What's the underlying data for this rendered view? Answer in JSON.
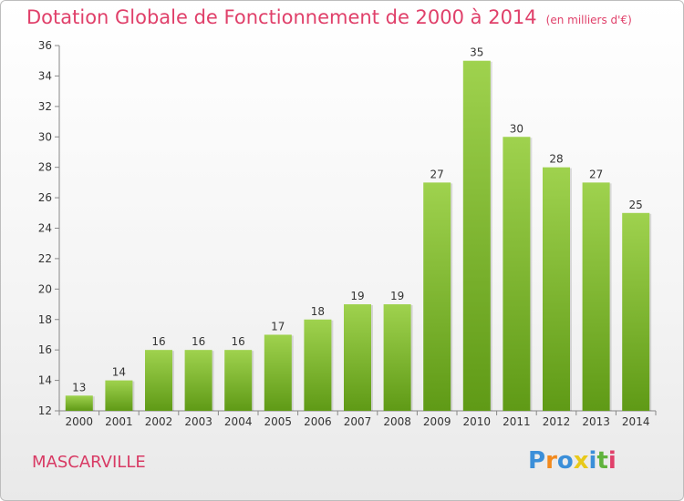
{
  "header": {
    "title": "Dotation Globale de Fonctionnement de 2000 à 2014",
    "subtitle": "(en milliers d'€)"
  },
  "footer": {
    "commune": "MASCARVILLE",
    "logo": {
      "text": "Proxiti",
      "letters": [
        {
          "ch": "P",
          "color": "#3b8fd9"
        },
        {
          "ch": "r",
          "color": "#f28a1e"
        },
        {
          "ch": "o",
          "color": "#3b8fd9"
        },
        {
          "ch": "x",
          "color": "#e8c91a"
        },
        {
          "ch": "i",
          "color": "#3b8fd9"
        },
        {
          "ch": "t",
          "color": "#5fb33c"
        },
        {
          "ch": "i",
          "color": "#e0406a"
        }
      ]
    }
  },
  "chart_data": {
    "type": "bar",
    "title": "Dotation Globale de Fonctionnement de 2000 à 2014",
    "subtitle": "(en milliers d'€)",
    "categories": [
      "2000",
      "2001",
      "2002",
      "2003",
      "2004",
      "2005",
      "2006",
      "2007",
      "2008",
      "2009",
      "2010",
      "2011",
      "2012",
      "2013",
      "2014"
    ],
    "values": [
      13,
      14,
      16,
      16,
      16,
      17,
      18,
      19,
      19,
      27,
      35,
      30,
      28,
      27,
      25
    ],
    "ylim": [
      12,
      36
    ],
    "yticks": [
      12,
      14,
      16,
      18,
      20,
      22,
      24,
      26,
      28,
      30,
      32,
      34,
      36
    ],
    "grid": false,
    "colors": {
      "bar_top": "#9fd24e",
      "bar_bottom": "#5f9a16",
      "axis": "#888888",
      "text": "#333333"
    }
  }
}
